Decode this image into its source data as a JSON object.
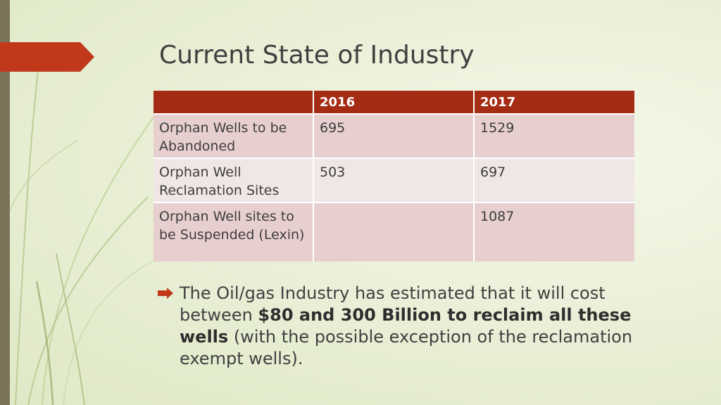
{
  "slide": {
    "title": "Current State of Industry"
  },
  "table": {
    "headers": [
      "",
      "2016",
      "2017"
    ],
    "rows": [
      [
        "Orphan Wells to be Abandoned",
        "695",
        "1529"
      ],
      [
        "Orphan Well Reclamation Sites",
        "503",
        "697"
      ],
      [
        "Orphan Well sites to be Suspended (Lexin)",
        "",
        "1087"
      ]
    ]
  },
  "bullet": {
    "text_before": "The Oil/gas Industry has estimated that it will cost between ",
    "text_bold": "$80 and 300 Billion to reclaim all these wells",
    "text_after": " (with the possible exception of the reclamation exempt wells)."
  },
  "colors": {
    "accent": "#c0391b",
    "header_fill": "#a52c14",
    "row_odd": "#e8cfcf",
    "row_even": "#f1e6e6",
    "background": "#eaf0d8",
    "left_bar": "#7a7358"
  },
  "icons": {
    "bullet": "arrow-bullet-icon"
  }
}
